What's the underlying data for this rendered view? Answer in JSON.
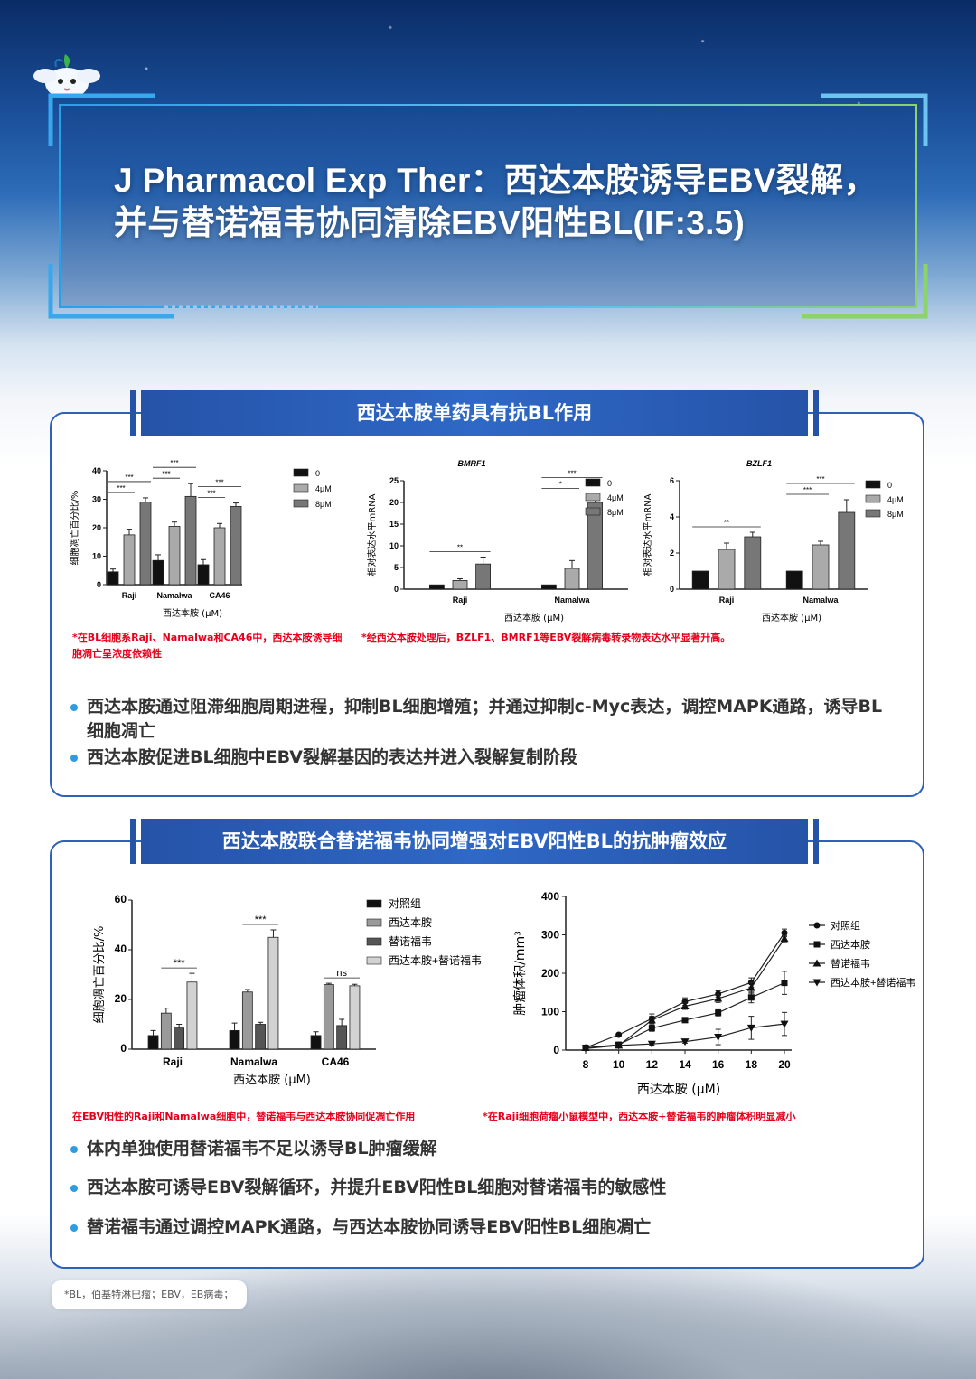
{
  "header": {
    "title_line1": "J Pharmacol Exp Ther：西达本胺诱导EBV裂解，",
    "title_line2": "并与替诺福韦协同清除EBV阳性BL(IF:3.5)"
  },
  "section1": {
    "banner": "西达本胺单药具有抗BL作用",
    "note_left": "*在BL细胞系Raji、Namalwa和CA46中，西达本胺诱导细胞凋亡呈浓度依赖性",
    "note_right": "*经西达本胺处理后，BZLF1、BMRF1等EBV裂解病毒转录物表达水平显著升高。",
    "bullets": [
      "西达本胺通过阻滞细胞周期进程，抑制BL细胞增殖；并通过抑制c-Myc表达，调控MAPK通路，诱导BL细胞凋亡",
      "西达本胺促进BL细胞中EBV裂解基因的表达并进入裂解复制阶段"
    ]
  },
  "section2": {
    "banner": "西达本胺联合替诺福韦协同增强对EBV阳性BL的抗肿瘤效应",
    "note_left": "在EBV阳性的Raji和Namalwa细胞中，替诺福韦与西达本胺协同促凋亡作用",
    "note_right": "*在Raji细胞荷瘤小鼠模型中，西达本胺+替诺福韦的肿瘤体积明显减小",
    "bullets": [
      "体内单独使用替诺福韦不足以诱导BL肿瘤缓解",
      "西达本胺可诱导EBV裂解循环，并提升EBV阳性BL细胞对替诺福韦的敏感性",
      "替诺福韦通过调控MAPK通路，与西达本胺协同诱导EBV阳性BL细胞凋亡"
    ]
  },
  "footnote": "*BL，伯基特淋巴瘤；EBV，EB病毒；",
  "colors": {
    "primary": "#2d62b8",
    "accent_red": "#e6001c",
    "bullet": "#2f9be0"
  },
  "chart_data": [
    {
      "type": "bar",
      "ylabel": "细胞凋亡百分比/%",
      "xlabel": "西达本胺 (μM)",
      "ylim": [
        0,
        40
      ],
      "yticks": [
        0,
        10,
        20,
        30,
        40
      ],
      "categories": [
        "Raji",
        "Namalwa",
        "CA46"
      ],
      "series": [
        {
          "name": "0",
          "color": "#111111",
          "values": [
            4.5,
            8.5,
            7
          ],
          "err": [
            1,
            2,
            1.8
          ]
        },
        {
          "name": "4μM",
          "color": "#aaaaaa",
          "values": [
            17.5,
            20.5,
            20
          ],
          "err": [
            2,
            1.5,
            1.5
          ]
        },
        {
          "name": "8μM",
          "color": "#777777",
          "values": [
            29,
            31,
            27.5
          ],
          "err": [
            1.5,
            4.5,
            1.2
          ]
        }
      ],
      "annotations": [
        "***",
        "***",
        "***",
        "***",
        "***",
        "***"
      ]
    },
    {
      "type": "bar",
      "title": "BMRF1",
      "ylabel": "相对表达水平mRNA",
      "xlabel": "西达本胺 (μM)",
      "ylim": [
        0,
        25
      ],
      "yticks": [
        0,
        5,
        10,
        15,
        20,
        25
      ],
      "categories": [
        "Raji",
        "Namalwa"
      ],
      "series": [
        {
          "name": "0",
          "color": "#111111",
          "values": [
            1,
            1
          ],
          "err": [
            0,
            0
          ]
        },
        {
          "name": "4μM",
          "color": "#aaaaaa",
          "values": [
            2,
            4.8
          ],
          "err": [
            0.4,
            1.8
          ]
        },
        {
          "name": "8μM",
          "color": "#777777",
          "values": [
            5.8,
            20
          ],
          "err": [
            1.6,
            2
          ]
        }
      ],
      "annotations": [
        "**",
        "*",
        "***"
      ]
    },
    {
      "type": "bar",
      "title": "BZLF1",
      "ylabel": "相对表达水平mRNA",
      "xlabel": "西达本胺 (μM)",
      "ylim": [
        0,
        6
      ],
      "yticks": [
        0,
        2,
        4,
        6
      ],
      "categories": [
        "Raji",
        "Namalwa"
      ],
      "series": [
        {
          "name": "0",
          "color": "#111111",
          "values": [
            1,
            1
          ],
          "err": [
            0,
            0
          ]
        },
        {
          "name": "4μM",
          "color": "#aaaaaa",
          "values": [
            2.2,
            2.45
          ],
          "err": [
            0.35,
            0.2
          ]
        },
        {
          "name": "8μM",
          "color": "#777777",
          "values": [
            2.9,
            4.25
          ],
          "err": [
            0.25,
            0.7
          ]
        }
      ],
      "annotations": [
        "**",
        "***",
        "***",
        "***"
      ]
    },
    {
      "type": "bar",
      "ylabel": "细胞凋亡百分比/%",
      "xlabel": "西达本胺 (μM)",
      "ylim": [
        0,
        60
      ],
      "yticks": [
        0,
        20,
        40,
        60
      ],
      "categories": [
        "Raji",
        "Namalwa",
        "CA46"
      ],
      "series": [
        {
          "name": "对照组",
          "color": "#111111",
          "values": [
            5.5,
            7.5,
            5.5
          ],
          "err": [
            2,
            3,
            1.5
          ]
        },
        {
          "name": "西达本胺",
          "color": "#9a9a9a",
          "values": [
            14.5,
            23,
            26
          ],
          "err": [
            2,
            1,
            0.5
          ]
        },
        {
          "name": "替诺福韦",
          "color": "#555555",
          "values": [
            8.5,
            10,
            9.5
          ],
          "err": [
            1.5,
            0.8,
            2.5
          ]
        },
        {
          "name": "西达本胺+替诺福韦",
          "color": "#d2d2d2",
          "values": [
            27,
            45,
            25.5
          ],
          "err": [
            3.5,
            3,
            0.6
          ]
        }
      ],
      "annotations": [
        "***",
        "***",
        "ns"
      ]
    },
    {
      "type": "line",
      "ylabel": "肿瘤体积/mm³",
      "xlabel": "西达本胺 (μM)",
      "x": [
        8,
        10,
        12,
        14,
        16,
        18,
        20
      ],
      "ylim": [
        0,
        400
      ],
      "yticks": [
        0,
        100,
        200,
        300,
        400
      ],
      "series": [
        {
          "name": "对照组",
          "marker": "circle",
          "values": [
            6,
            40,
            82,
            126,
            146,
            176,
            305
          ],
          "err": [
            0,
            0,
            12,
            10,
            8,
            12,
            10
          ]
        },
        {
          "name": "西达本胺",
          "marker": "square",
          "values": [
            6,
            14,
            57,
            78,
            97,
            137,
            175
          ],
          "err": [
            0,
            0,
            8,
            6,
            8,
            14,
            30
          ]
        },
        {
          "name": "替诺福韦",
          "marker": "triangle",
          "values": [
            6,
            12,
            78,
            114,
            134,
            162,
            290
          ],
          "err": [
            0,
            0,
            10,
            8,
            10,
            14,
            8
          ]
        },
        {
          "name": "西达本胺+替诺福韦",
          "marker": "triangle-down",
          "values": [
            4,
            12,
            16,
            22,
            34,
            58,
            68
          ],
          "err": [
            0,
            0,
            3,
            4,
            20,
            30,
            30
          ]
        }
      ]
    }
  ]
}
